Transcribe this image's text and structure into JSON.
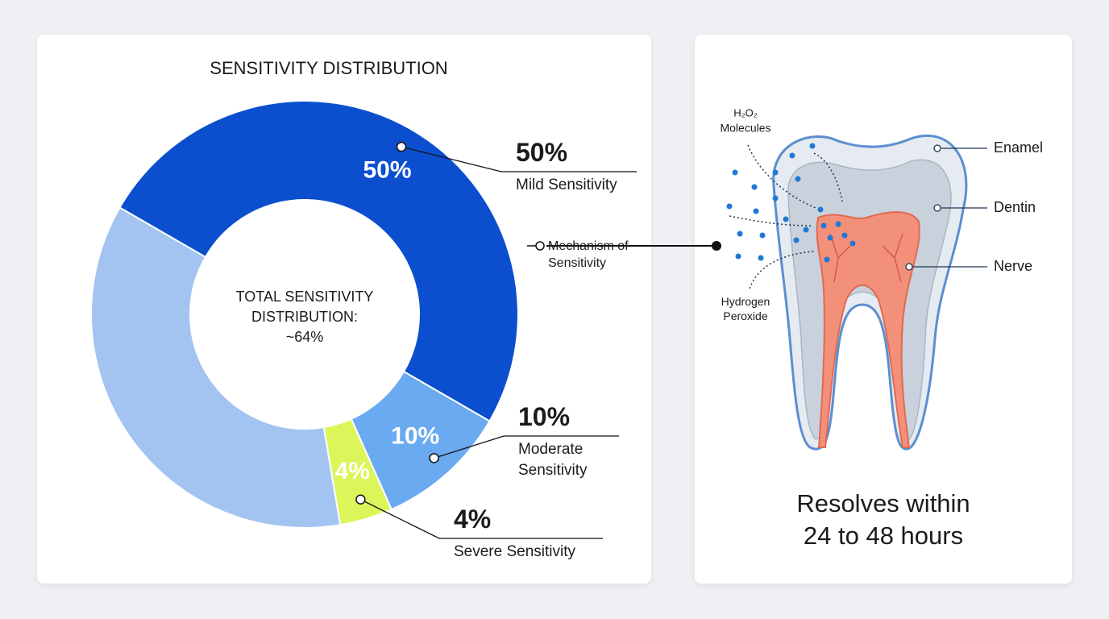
{
  "chart_data": {
    "type": "donut",
    "title": "SENSITIVITY DISTRIBUTION",
    "categories": [
      "Mild Sensitivity",
      "Moderate Sensitivity",
      "Severe Sensitivity",
      null
    ],
    "values": [
      50,
      10,
      4,
      36
    ],
    "value_labels": [
      "50%",
      "10%",
      "4%",
      null
    ],
    "colors": [
      "#0b4fcf",
      "#6aaaf0",
      "#dcf55a",
      "#a3c4f0"
    ],
    "center_text": [
      "TOTAL SENSITIVITY DISTRIBUTION:",
      "~64%"
    ],
    "callout": "Mechanism of Sensitivity"
  },
  "diagram": {
    "h2o2": "H₂O₂",
    "molecules": "Molecules",
    "hydrogen_peroxide": "Hydrogen Peroxide",
    "parts": [
      "Enamel",
      "Dentin",
      "Nerve"
    ],
    "caption": [
      "Resolves within",
      "24 to 48 hours"
    ]
  }
}
